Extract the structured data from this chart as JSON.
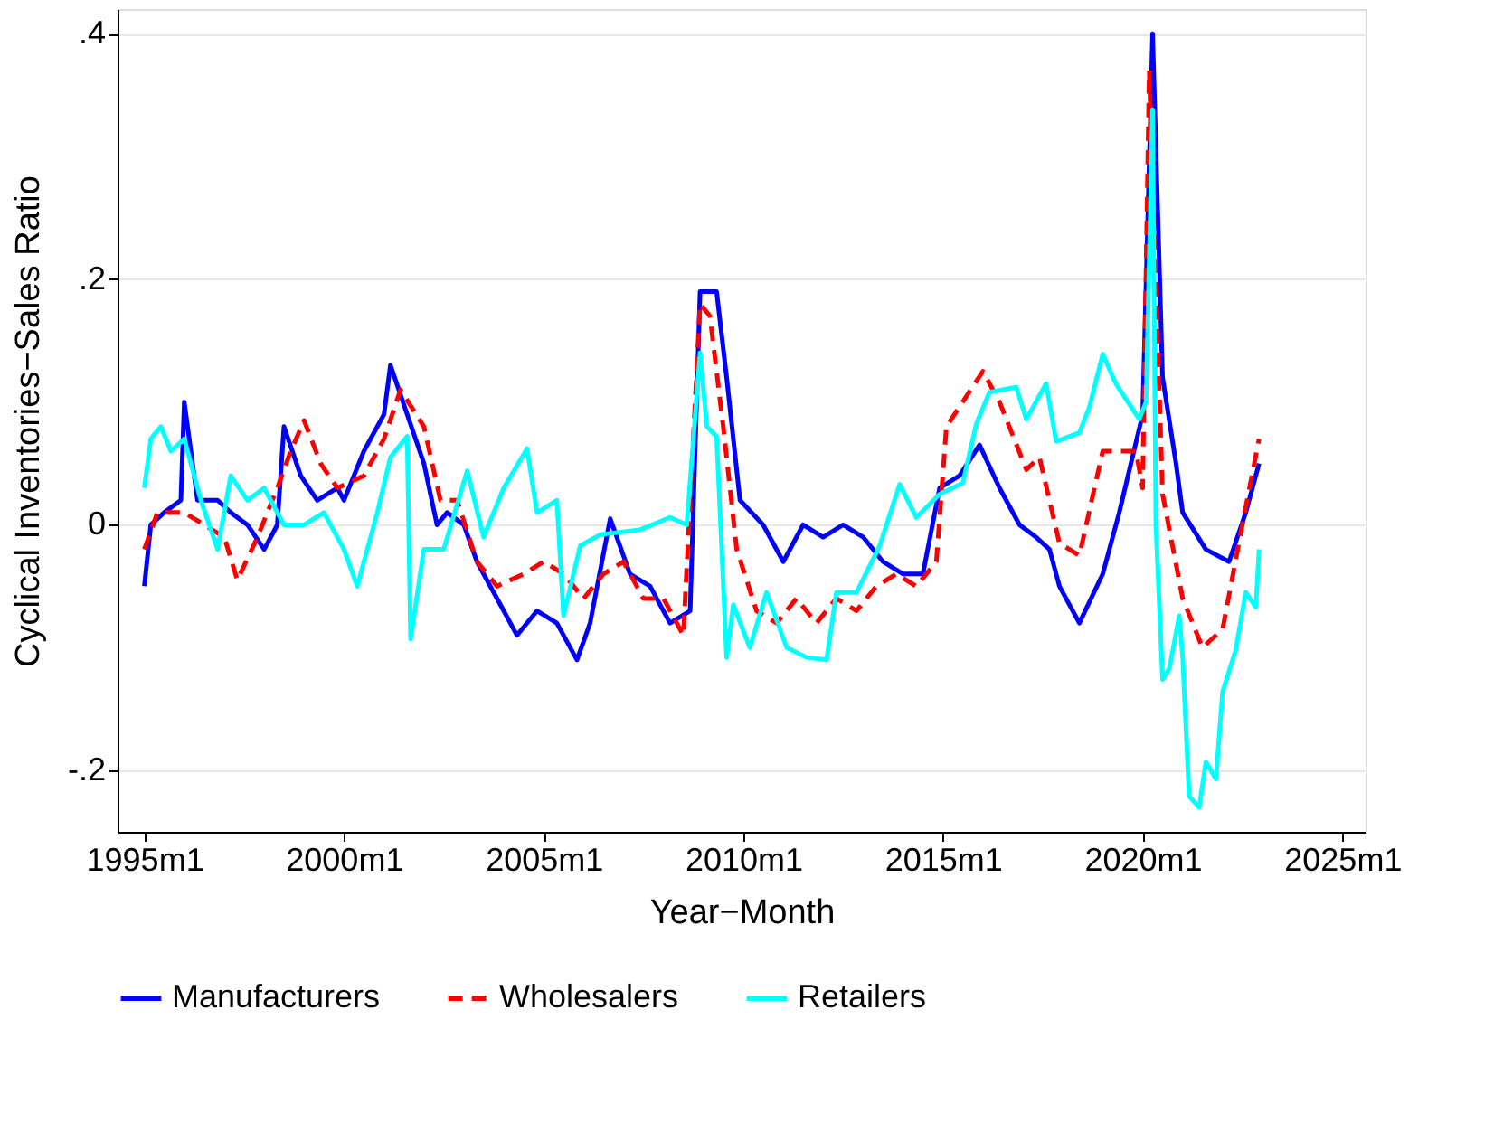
{
  "chart_data": {
    "type": "line",
    "xlabel": "Year−Month",
    "ylabel": "Cyclical Inventories−Sales Ratio",
    "xlim": [
      "1994-05",
      "2025-08"
    ],
    "ylim": [
      -0.25,
      0.42
    ],
    "xticks": [
      {
        "value": "1995-01",
        "label": "1995m1"
      },
      {
        "value": "2000-01",
        "label": "2000m1"
      },
      {
        "value": "2005-01",
        "label": "2005m1"
      },
      {
        "value": "2010-01",
        "label": "2010m1"
      },
      {
        "value": "2015-01",
        "label": "2015m1"
      },
      {
        "value": "2020-01",
        "label": "2020m1"
      },
      {
        "value": "2025-01",
        "label": "2025m1"
      }
    ],
    "yticks": [
      {
        "value": -0.2,
        "label": "-.2"
      },
      0,
      {
        "value": 0.2,
        "label": ".2"
      },
      {
        "value": 0.4,
        "label": ".4"
      }
    ],
    "grid": "y",
    "legend": "bottom",
    "marker": "none",
    "series": [
      {
        "name": "Manufacturers",
        "color": "#0000ff",
        "line_style": "solid",
        "x": [
          "1995-01",
          "1995-03",
          "1995-07",
          "1995-12",
          "1996-01",
          "1996-05",
          "1996-11",
          "1997-03",
          "1997-08",
          "1998-01",
          "1998-05",
          "1998-07",
          "1998-12",
          "1999-05",
          "1999-11",
          "2000-01",
          "2000-07",
          "2001-01",
          "2001-03",
          "2001-08",
          "2002-01",
          "2002-05",
          "2002-08",
          "2003-01",
          "2003-05",
          "2003-11",
          "2004-01",
          "2004-05",
          "2004-11",
          "2005-05",
          "2005-11",
          "2006-03",
          "2006-09",
          "2007-03",
          "2007-09",
          "2008-03",
          "2008-09",
          "2008-12",
          "2009-05",
          "2009-08",
          "2009-12",
          "2010-07",
          "2011-01",
          "2011-07",
          "2012-01",
          "2012-07",
          "2013-01",
          "2013-07",
          "2014-01",
          "2014-07",
          "2014-12",
          "2015-06",
          "2015-12",
          "2016-06",
          "2016-12",
          "2017-05",
          "2017-09",
          "2017-12",
          "2018-06",
          "2019-01",
          "2019-06",
          "2020-01",
          "2020-04",
          "2020-07",
          "2020-11",
          "2021-01",
          "2021-08",
          "2022-03",
          "2022-08",
          "2022-12"
        ],
        "values": [
          -0.05,
          0.0,
          0.01,
          0.02,
          0.1,
          0.02,
          0.02,
          0.01,
          0.0,
          -0.02,
          0.0,
          0.08,
          0.04,
          0.02,
          0.03,
          0.02,
          0.06,
          0.09,
          0.13,
          0.09,
          0.05,
          0.0,
          0.01,
          0.0,
          -0.03,
          -0.06,
          -0.07,
          -0.09,
          -0.07,
          -0.08,
          -0.11,
          -0.08,
          0.005,
          -0.04,
          -0.05,
          -0.08,
          -0.07,
          0.19,
          0.19,
          0.12,
          0.02,
          0.0,
          -0.03,
          0.0,
          -0.01,
          0.0,
          -0.01,
          -0.03,
          -0.04,
          -0.04,
          0.03,
          0.04,
          0.065,
          0.03,
          0.0,
          -0.01,
          -0.02,
          -0.05,
          -0.08,
          -0.04,
          0.01,
          0.09,
          0.4,
          0.12,
          0.05,
          0.01,
          -0.02,
          -0.03,
          0.01,
          0.05
        ]
      },
      {
        "name": "Wholesalers",
        "color": "#ff0000",
        "line_style": "dashed",
        "x": [
          "1995-01",
          "1995-05",
          "1996-01",
          "1996-07",
          "1997-01",
          "1997-05",
          "1997-11",
          "1998-05",
          "1998-09",
          "1999-01",
          "1999-06",
          "1999-11",
          "2000-07",
          "2001-01",
          "2001-06",
          "2002-01",
          "2002-06",
          "2002-11",
          "2003-05",
          "2003-11",
          "2004-07",
          "2005-01",
          "2005-07",
          "2006-01",
          "2006-07",
          "2007-01",
          "2007-07",
          "2008-01",
          "2008-07",
          "2008-12",
          "2009-03",
          "2009-07",
          "2009-11",
          "2010-05",
          "2010-11",
          "2011-05",
          "2011-11",
          "2012-05",
          "2012-11",
          "2013-05",
          "2013-11",
          "2014-05",
          "2014-11",
          "2015-02",
          "2016-01",
          "2016-06",
          "2017-02",
          "2017-06",
          "2017-12",
          "2018-06",
          "2019-01",
          "2019-11",
          "2020-01",
          "2020-03",
          "2020-07",
          "2021-01",
          "2021-07",
          "2022-01",
          "2022-07",
          "2022-12"
        ],
        "values": [
          -0.02,
          0.01,
          0.01,
          0.0,
          -0.01,
          -0.045,
          -0.01,
          0.03,
          0.06,
          0.085,
          0.05,
          0.03,
          0.04,
          0.07,
          0.11,
          0.08,
          0.02,
          0.02,
          -0.03,
          -0.05,
          -0.04,
          -0.03,
          -0.04,
          -0.06,
          -0.04,
          -0.03,
          -0.06,
          -0.06,
          -0.09,
          0.18,
          0.17,
          0.08,
          -0.02,
          -0.07,
          -0.08,
          -0.06,
          -0.08,
          -0.06,
          -0.07,
          -0.05,
          -0.04,
          -0.05,
          -0.03,
          0.08,
          0.125,
          0.1,
          0.045,
          0.055,
          -0.015,
          -0.025,
          0.06,
          0.06,
          0.03,
          0.37,
          0.025,
          -0.06,
          -0.1,
          -0.085,
          0.0,
          0.07
        ]
      },
      {
        "name": "Retailers",
        "color": "#00ffff",
        "line_style": "solid",
        "x": [
          "1995-01",
          "1995-03",
          "1995-06",
          "1995-09",
          "1996-01",
          "1996-06",
          "1996-11",
          "1997-03",
          "1997-08",
          "1998-01",
          "1998-07",
          "1999-01",
          "1999-07",
          "2000-01",
          "2000-05",
          "2000-11",
          "2001-03",
          "2001-08",
          "2001-09",
          "2002-01",
          "2002-07",
          "2003-02",
          "2003-07",
          "2004-01",
          "2004-08",
          "2004-11",
          "2005-05",
          "2005-07",
          "2005-12",
          "2006-06",
          "2007-06",
          "2008-03",
          "2008-08",
          "2008-12",
          "2009-02",
          "2009-05",
          "2009-08",
          "2009-10",
          "2010-03",
          "2010-08",
          "2011-02",
          "2011-08",
          "2012-02",
          "2012-05",
          "2012-11",
          "2013-06",
          "2013-12",
          "2014-05",
          "2014-12",
          "2015-07",
          "2015-11",
          "2016-03",
          "2016-11",
          "2017-02",
          "2017-08",
          "2017-11",
          "2018-06",
          "2018-09",
          "2019-01",
          "2019-05",
          "2019-12",
          "2020-02",
          "2020-04",
          "2020-05",
          "2020-07",
          "2020-09",
          "2020-12",
          "2021-01",
          "2021-03",
          "2021-06",
          "2021-08",
          "2021-11",
          "2022-01",
          "2022-05",
          "2022-08",
          "2022-11",
          "2022-12"
        ],
        "values": [
          0.03,
          0.07,
          0.08,
          0.06,
          0.07,
          0.02,
          -0.02,
          0.04,
          0.02,
          0.03,
          0.0,
          0.0,
          0.01,
          -0.02,
          -0.05,
          0.01,
          0.055,
          0.072,
          -0.093,
          -0.02,
          -0.02,
          0.044,
          -0.01,
          0.03,
          0.062,
          0.01,
          0.02,
          -0.074,
          -0.017,
          -0.008,
          -0.004,
          0.006,
          0.0,
          0.14,
          0.08,
          0.072,
          -0.108,
          -0.065,
          -0.1,
          -0.055,
          -0.1,
          -0.108,
          -0.11,
          -0.055,
          -0.055,
          -0.017,
          0.033,
          0.006,
          0.025,
          0.034,
          0.082,
          0.108,
          0.112,
          0.086,
          0.115,
          0.068,
          0.075,
          0.096,
          0.139,
          0.115,
          0.086,
          0.1,
          0.338,
          0.0,
          -0.126,
          -0.117,
          -0.074,
          -0.108,
          -0.221,
          -0.23,
          -0.193,
          -0.207,
          -0.136,
          -0.102,
          -0.055,
          -0.067,
          -0.02
        ]
      }
    ]
  }
}
